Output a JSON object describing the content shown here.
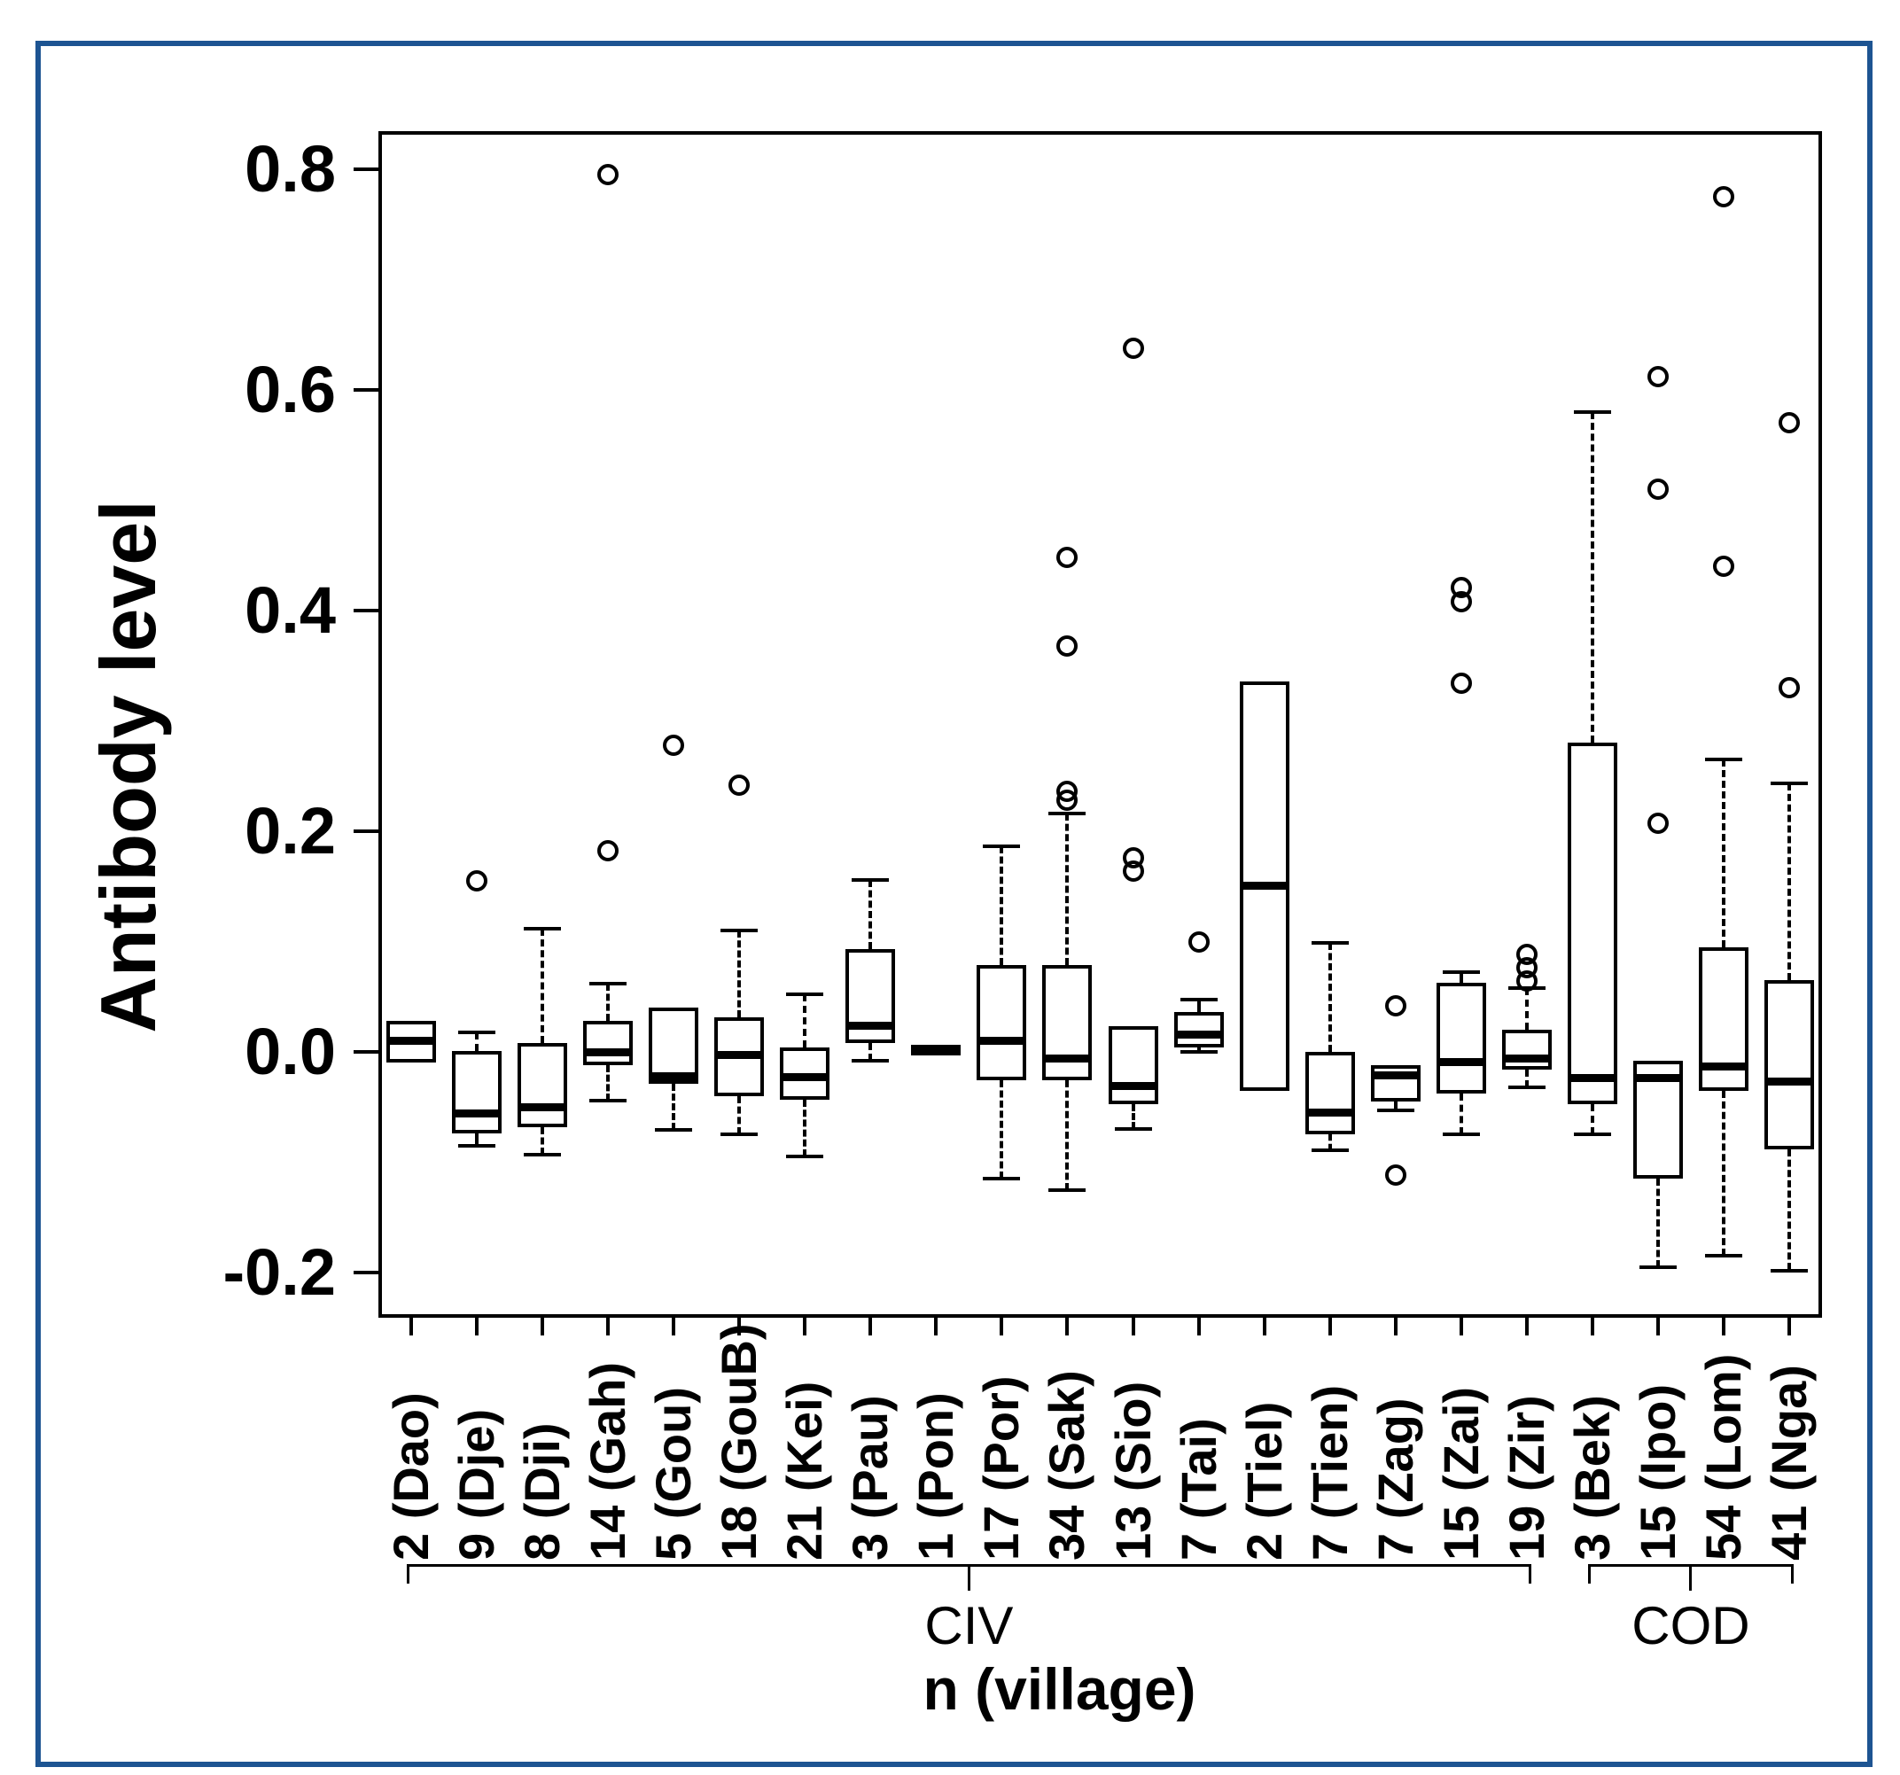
{
  "figure": {
    "frame_color": "#1d5492",
    "axis_color": "#000000",
    "background": "#ffffff"
  },
  "chart_data": {
    "type": "boxplot",
    "title": "",
    "ylabel": "Antibody level",
    "xlabel": "n (village)",
    "ylim": [
      -0.241,
      0.841
    ],
    "yticks": [
      0.8,
      0.6,
      0.4,
      0.2,
      0.0,
      -0.2
    ],
    "ytick_labels": [
      "0.8",
      "0.6",
      "0.4",
      "0.2",
      "0.0",
      "-0.2"
    ],
    "grid": false,
    "legend": "none",
    "groups": [
      {
        "name": "CIV",
        "from": 0,
        "to": 17
      },
      {
        "name": "COD",
        "from": 18,
        "to": 21
      }
    ],
    "boxes": [
      {
        "label": "2 (Dao)",
        "n": 2,
        "village": "Dao",
        "group": "CIV",
        "q1": -0.01,
        "median": 0.01,
        "q3": 0.028,
        "whisker_low": -0.01,
        "whisker_high": 0.028,
        "outliers": []
      },
      {
        "label": "9 (Dje)",
        "n": 9,
        "village": "Dje",
        "group": "CIV",
        "q1": -0.074,
        "median": -0.056,
        "q3": 0.001,
        "whisker_low": -0.085,
        "whisker_high": 0.018,
        "outliers": [
          0.155
        ]
      },
      {
        "label": "8 (Dji)",
        "n": 8,
        "village": "Dji",
        "group": "CIV",
        "q1": -0.068,
        "median": -0.05,
        "q3": 0.008,
        "whisker_low": -0.093,
        "whisker_high": 0.112,
        "outliers": []
      },
      {
        "label": "14 (Gah)",
        "n": 14,
        "village": "Gah",
        "group": "CIV",
        "q1": -0.012,
        "median": 0.0,
        "q3": 0.028,
        "whisker_low": -0.044,
        "whisker_high": 0.062,
        "outliers": [
          0.795,
          0.182
        ]
      },
      {
        "label": "5 (Gou)",
        "n": 5,
        "village": "Gou",
        "group": "CIV",
        "q1": -0.029,
        "median": -0.022,
        "q3": 0.04,
        "whisker_low": -0.071,
        "whisker_high": 0.04,
        "outliers": [
          0.278
        ]
      },
      {
        "label": "18 (GouB)",
        "n": 18,
        "village": "GouB",
        "group": "CIV",
        "q1": -0.04,
        "median": -0.003,
        "q3": 0.031,
        "whisker_low": -0.075,
        "whisker_high": 0.11,
        "outliers": [
          0.242
        ]
      },
      {
        "label": "21 (Kei)",
        "n": 21,
        "village": "Kei",
        "group": "CIV",
        "q1": -0.043,
        "median": -0.023,
        "q3": 0.004,
        "whisker_low": -0.095,
        "whisker_high": 0.052,
        "outliers": []
      },
      {
        "label": "3 (Pau)",
        "n": 3,
        "village": "Pau",
        "group": "CIV",
        "q1": 0.008,
        "median": 0.024,
        "q3": 0.093,
        "whisker_low": -0.008,
        "whisker_high": 0.156,
        "outliers": []
      },
      {
        "label": "1 (Pon)",
        "n": 1,
        "village": "Pon",
        "group": "CIV",
        "q1": 0.003,
        "median": 0.003,
        "q3": 0.003,
        "whisker_low": 0.003,
        "whisker_high": 0.003,
        "outliers": []
      },
      {
        "label": "17 (Por)",
        "n": 17,
        "village": "Por",
        "group": "CIV",
        "q1": -0.026,
        "median": 0.01,
        "q3": 0.079,
        "whisker_low": -0.115,
        "whisker_high": 0.186,
        "outliers": []
      },
      {
        "label": "34 (Sak)",
        "n": 34,
        "village": "Sak",
        "group": "CIV",
        "q1": -0.026,
        "median": -0.006,
        "q3": 0.079,
        "whisker_low": -0.125,
        "whisker_high": 0.216,
        "outliers": [
          0.448,
          0.368,
          0.236,
          0.228
        ]
      },
      {
        "label": "13 (Sio)",
        "n": 13,
        "village": "Sio",
        "group": "CIV",
        "q1": -0.047,
        "median": -0.031,
        "q3": 0.023,
        "whisker_low": -0.07,
        "whisker_high": 0.023,
        "outliers": [
          0.638,
          0.176,
          0.164
        ]
      },
      {
        "label": "7 (Tai)",
        "n": 7,
        "village": "Tai",
        "group": "CIV",
        "q1": 0.004,
        "median": 0.016,
        "q3": 0.036,
        "whisker_low": 0.0,
        "whisker_high": 0.047,
        "outliers": [
          0.1
        ]
      },
      {
        "label": "2 (Tiel)",
        "n": 2,
        "village": "Tiel",
        "group": "CIV",
        "q1": -0.035,
        "median": 0.151,
        "q3": 0.336,
        "whisker_low": -0.035,
        "whisker_high": 0.336,
        "outliers": []
      },
      {
        "label": "7 (Tien)",
        "n": 7,
        "village": "Tien",
        "group": "CIV",
        "q1": -0.075,
        "median": -0.055,
        "q3": 0.0,
        "whisker_low": -0.089,
        "whisker_high": 0.099,
        "outliers": []
      },
      {
        "label": "7 (Zag)",
        "n": 7,
        "village": "Zag",
        "group": "CIV",
        "q1": -0.045,
        "median": -0.021,
        "q3": -0.012,
        "whisker_low": -0.053,
        "whisker_high": -0.012,
        "outliers": [
          0.042,
          -0.112
        ]
      },
      {
        "label": "15 (Zai)",
        "n": 15,
        "village": "Zai",
        "group": "CIV",
        "q1": -0.038,
        "median": -0.009,
        "q3": 0.063,
        "whisker_low": -0.075,
        "whisker_high": 0.072,
        "outliers": [
          0.421,
          0.408,
          0.334
        ]
      },
      {
        "label": "19 (Zir)",
        "n": 19,
        "village": "Zir",
        "group": "CIV",
        "q1": -0.016,
        "median": -0.006,
        "q3": 0.02,
        "whisker_low": -0.032,
        "whisker_high": 0.058,
        "outliers": [
          0.088,
          0.076,
          0.064
        ]
      },
      {
        "label": "3 (Bek)",
        "n": 3,
        "village": "Bek",
        "group": "COD",
        "q1": -0.047,
        "median": -0.024,
        "q3": 0.28,
        "whisker_low": -0.075,
        "whisker_high": 0.58,
        "outliers": []
      },
      {
        "label": "15 (Ipo)",
        "n": 15,
        "village": "Ipo",
        "group": "COD",
        "q1": -0.115,
        "median": -0.024,
        "q3": -0.008,
        "whisker_low": -0.195,
        "whisker_high": -0.008,
        "outliers": [
          0.612,
          0.51,
          0.207
        ]
      },
      {
        "label": "54 (Lom)",
        "n": 54,
        "village": "Lom",
        "group": "COD",
        "q1": -0.035,
        "median": -0.013,
        "q3": 0.095,
        "whisker_low": -0.185,
        "whisker_high": 0.265,
        "outliers": [
          0.775,
          0.44
        ]
      },
      {
        "label": "41 (Nga)",
        "n": 41,
        "village": "Nga",
        "group": "COD",
        "q1": -0.088,
        "median": -0.027,
        "q3": 0.065,
        "whisker_low": -0.198,
        "whisker_high": 0.243,
        "outliers": [
          0.57,
          0.33
        ]
      }
    ]
  }
}
